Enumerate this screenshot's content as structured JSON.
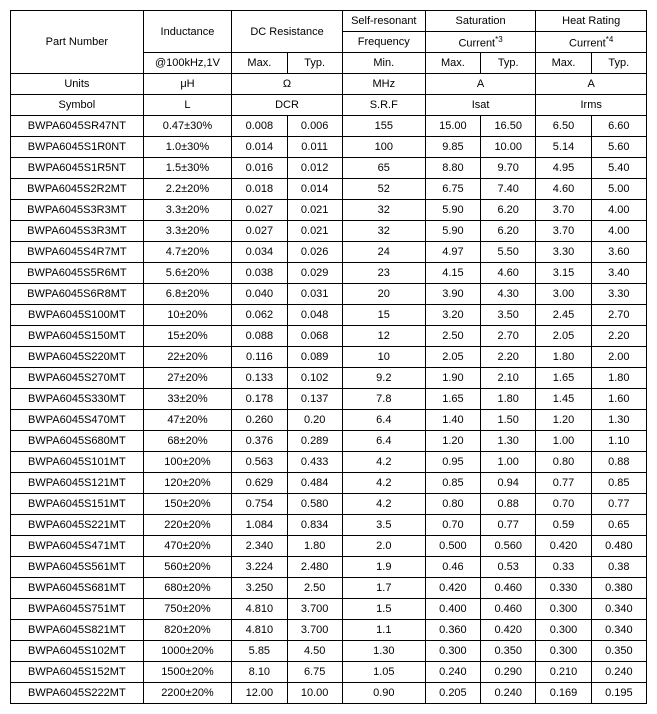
{
  "headers": {
    "part_number": "Part Number",
    "inductance": "Inductance",
    "dc_resistance": "DC Resistance",
    "srf_top": "Self-resonant",
    "srf_bot": "Frequency",
    "sat_top": "Saturation",
    "sat_bot": "Current",
    "sat_sup": "*3",
    "heat_top": "Heat Rating",
    "heat_bot": "Current",
    "heat_sup": "*4",
    "ind_cond": "@100kHz,1V",
    "max": "Max.",
    "typ": "Typ.",
    "min": "Min.",
    "units": "Units",
    "uH": "μH",
    "ohm": "Ω",
    "mhz": "MHz",
    "amp": "A",
    "symbol": "Symbol",
    "L": "L",
    "DCR": "DCR",
    "SRF": "S.R.F",
    "Isat": "Isat",
    "Irms": "Irms"
  },
  "rows": [
    {
      "pn": "BWPA6045SR47NT",
      "ind": "0.47±30%",
      "dmax": "0.008",
      "dtyp": "0.006",
      "srf": "155",
      "smax": "15.00",
      "styp": "16.50",
      "imax": "6.50",
      "ityp": "6.60"
    },
    {
      "pn": "BWPA6045S1R0NT",
      "ind": "1.0±30%",
      "dmax": "0.014",
      "dtyp": "0.011",
      "srf": "100",
      "smax": "9.85",
      "styp": "10.00",
      "imax": "5.14",
      "ityp": "5.60"
    },
    {
      "pn": "BWPA6045S1R5NT",
      "ind": "1.5±30%",
      "dmax": "0.016",
      "dtyp": "0.012",
      "srf": "65",
      "smax": "8.80",
      "styp": "9.70",
      "imax": "4.95",
      "ityp": "5.40"
    },
    {
      "pn": "BWPA6045S2R2MT",
      "ind": "2.2±20%",
      "dmax": "0.018",
      "dtyp": "0.014",
      "srf": "52",
      "smax": "6.75",
      "styp": "7.40",
      "imax": "4.60",
      "ityp": "5.00"
    },
    {
      "pn": "BWPA6045S3R3MT",
      "ind": "3.3±20%",
      "dmax": "0.027",
      "dtyp": "0.021",
      "srf": "32",
      "smax": "5.90",
      "styp": "6.20",
      "imax": "3.70",
      "ityp": "4.00"
    },
    {
      "pn": "BWPA6045S3R3MT",
      "ind": "3.3±20%",
      "dmax": "0.027",
      "dtyp": "0.021",
      "srf": "32",
      "smax": "5.90",
      "styp": "6.20",
      "imax": "3.70",
      "ityp": "4.00"
    },
    {
      "pn": "BWPA6045S4R7MT",
      "ind": "4.7±20%",
      "dmax": "0.034",
      "dtyp": "0.026",
      "srf": "24",
      "smax": "4.97",
      "styp": "5.50",
      "imax": "3.30",
      "ityp": "3.60"
    },
    {
      "pn": "BWPA6045S5R6MT",
      "ind": "5.6±20%",
      "dmax": "0.038",
      "dtyp": "0.029",
      "srf": "23",
      "smax": "4.15",
      "styp": "4.60",
      "imax": "3.15",
      "ityp": "3.40"
    },
    {
      "pn": "BWPA6045S6R8MT",
      "ind": "6.8±20%",
      "dmax": "0.040",
      "dtyp": "0.031",
      "srf": "20",
      "smax": "3.90",
      "styp": "4.30",
      "imax": "3.00",
      "ityp": "3.30"
    },
    {
      "pn": "BWPA6045S100MT",
      "ind": "10±20%",
      "dmax": "0.062",
      "dtyp": "0.048",
      "srf": "15",
      "smax": "3.20",
      "styp": "3.50",
      "imax": "2.45",
      "ityp": "2.70"
    },
    {
      "pn": "BWPA6045S150MT",
      "ind": "15±20%",
      "dmax": "0.088",
      "dtyp": "0.068",
      "srf": "12",
      "smax": "2.50",
      "styp": "2.70",
      "imax": "2.05",
      "ityp": "2.20"
    },
    {
      "pn": "BWPA6045S220MT",
      "ind": "22±20%",
      "dmax": "0.116",
      "dtyp": "0.089",
      "srf": "10",
      "smax": "2.05",
      "styp": "2.20",
      "imax": "1.80",
      "ityp": "2.00"
    },
    {
      "pn": "BWPA6045S270MT",
      "ind": "27±20%",
      "dmax": "0.133",
      "dtyp": "0.102",
      "srf": "9.2",
      "smax": "1.90",
      "styp": "2.10",
      "imax": "1.65",
      "ityp": "1.80"
    },
    {
      "pn": "BWPA6045S330MT",
      "ind": "33±20%",
      "dmax": "0.178",
      "dtyp": "0.137",
      "srf": "7.8",
      "smax": "1.65",
      "styp": "1.80",
      "imax": "1.45",
      "ityp": "1.60"
    },
    {
      "pn": "BWPA6045S470MT",
      "ind": "47±20%",
      "dmax": "0.260",
      "dtyp": "0.20",
      "srf": "6.4",
      "smax": "1.40",
      "styp": "1.50",
      "imax": "1.20",
      "ityp": "1.30"
    },
    {
      "pn": "BWPA6045S680MT",
      "ind": "68±20%",
      "dmax": "0.376",
      "dtyp": "0.289",
      "srf": "6.4",
      "smax": "1.20",
      "styp": "1.30",
      "imax": "1.00",
      "ityp": "1.10"
    },
    {
      "pn": "BWPA6045S101MT",
      "ind": "100±20%",
      "dmax": "0.563",
      "dtyp": "0.433",
      "srf": "4.2",
      "smax": "0.95",
      "styp": "1.00",
      "imax": "0.80",
      "ityp": "0.88"
    },
    {
      "pn": "BWPA6045S121MT",
      "ind": "120±20%",
      "dmax": "0.629",
      "dtyp": "0.484",
      "srf": "4.2",
      "smax": "0.85",
      "styp": "0.94",
      "imax": "0.77",
      "ityp": "0.85"
    },
    {
      "pn": "BWPA6045S151MT",
      "ind": "150±20%",
      "dmax": "0.754",
      "dtyp": "0.580",
      "srf": "4.2",
      "smax": "0.80",
      "styp": "0.88",
      "imax": "0.70",
      "ityp": "0.77"
    },
    {
      "pn": "BWPA6045S221MT",
      "ind": "220±20%",
      "dmax": "1.084",
      "dtyp": "0.834",
      "srf": "3.5",
      "smax": "0.70",
      "styp": "0.77",
      "imax": "0.59",
      "ityp": "0.65"
    },
    {
      "pn": "BWPA6045S471MT",
      "ind": "470±20%",
      "dmax": "2.340",
      "dtyp": "1.80",
      "srf": "2.0",
      "smax": "0.500",
      "styp": "0.560",
      "imax": "0.420",
      "ityp": "0.480"
    },
    {
      "pn": "BWPA6045S561MT",
      "ind": "560±20%",
      "dmax": "3.224",
      "dtyp": "2.480",
      "srf": "1.9",
      "smax": "0.46",
      "styp": "0.53",
      "imax": "0.33",
      "ityp": "0.38"
    },
    {
      "pn": "BWPA6045S681MT",
      "ind": "680±20%",
      "dmax": "3.250",
      "dtyp": "2.50",
      "srf": "1.7",
      "smax": "0.420",
      "styp": "0.460",
      "imax": "0.330",
      "ityp": "0.380"
    },
    {
      "pn": "BWPA6045S751MT",
      "ind": "750±20%",
      "dmax": "4.810",
      "dtyp": "3.700",
      "srf": "1.5",
      "smax": "0.400",
      "styp": "0.460",
      "imax": "0.300",
      "ityp": "0.340"
    },
    {
      "pn": "BWPA6045S821MT",
      "ind": "820±20%",
      "dmax": "4.810",
      "dtyp": "3.700",
      "srf": "1.1",
      "smax": "0.360",
      "styp": "0.420",
      "imax": "0.300",
      "ityp": "0.340"
    },
    {
      "pn": "BWPA6045S102MT",
      "ind": "1000±20%",
      "dmax": "5.85",
      "dtyp": "4.50",
      "srf": "1.30",
      "smax": "0.300",
      "styp": "0.350",
      "imax": "0.300",
      "ityp": "0.350"
    },
    {
      "pn": "BWPA6045S152MT",
      "ind": "1500±20%",
      "dmax": "8.10",
      "dtyp": "6.75",
      "srf": "1.05",
      "smax": "0.240",
      "styp": "0.290",
      "imax": "0.210",
      "ityp": "0.240"
    },
    {
      "pn": "BWPA6045S222MT",
      "ind": "2200±20%",
      "dmax": "12.00",
      "dtyp": "10.00",
      "srf": "0.90",
      "smax": "0.205",
      "styp": "0.240",
      "imax": "0.169",
      "ityp": "0.195"
    }
  ]
}
